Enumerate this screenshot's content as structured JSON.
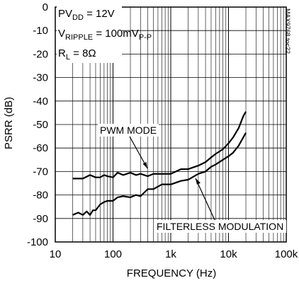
{
  "chart_data": {
    "type": "line",
    "xlabel": "FREQUENCY (Hz)",
    "ylabel": "PSRR (dB)",
    "x_scale": "log",
    "xlim": [
      10,
      100000
    ],
    "ylim": [
      -100,
      0
    ],
    "grid": true,
    "x_tick_labels": [
      "10",
      "100",
      "1k",
      "10k",
      "100k"
    ],
    "x_ticks": [
      10,
      100,
      1000,
      10000,
      100000
    ],
    "y_tick_labels": [
      "0",
      "-10",
      "-20",
      "-30",
      "-40",
      "-50",
      "-60",
      "-70",
      "-80",
      "-90",
      "-100"
    ],
    "y_ticks": [
      0,
      -10,
      -20,
      -30,
      -40,
      -50,
      -60,
      -70,
      -80,
      -90,
      -100
    ],
    "conditions": {
      "line1": {
        "main": "PV",
        "sub": "DD",
        "rest": " = 12V"
      },
      "line2": {
        "main": "V",
        "sub": "RIPPLE",
        "rest": " = 100mV",
        "sub2": "P-P"
      },
      "line3": {
        "main": "R",
        "sub": "L",
        "rest": " = 8Ω"
      }
    },
    "watermark": "MAX9768 toc22",
    "annotations": [
      "PWM MODE",
      "FILTERLESS MODULATION"
    ],
    "series": [
      {
        "name": "PWM MODE",
        "x": [
          20,
          30,
          40,
          50,
          60,
          70,
          80,
          100,
          120,
          150,
          200,
          250,
          300,
          400,
          500,
          700,
          1000,
          1500,
          2000,
          3000,
          4000,
          5000,
          6000,
          8000,
          10000,
          12000,
          15000,
          18000,
          20000
        ],
        "y": [
          -73,
          -73,
          -71.5,
          -72.5,
          -72.5,
          -71.5,
          -72,
          -72.5,
          -70.5,
          -71.5,
          -70.5,
          -71.5,
          -71,
          -72,
          -71,
          -71,
          -71,
          -69,
          -69,
          -67.5,
          -66,
          -64,
          -62.5,
          -60.5,
          -58,
          -55.5,
          -51.5,
          -46.5,
          -44.5
        ]
      },
      {
        "name": "FILTERLESS MODULATION",
        "x": [
          20,
          25,
          30,
          35,
          40,
          45,
          50,
          60,
          70,
          80,
          100,
          120,
          150,
          200,
          250,
          300,
          400,
          500,
          700,
          1000,
          1500,
          2000,
          3000,
          4000,
          5000,
          6000,
          8000,
          10000,
          12000,
          15000,
          18000,
          20000
        ],
        "y": [
          -88.5,
          -87.5,
          -88.5,
          -87,
          -88.5,
          -86.5,
          -86.5,
          -84,
          -83,
          -82.5,
          -82.5,
          -81,
          -80.5,
          -81,
          -80,
          -80.5,
          -77.5,
          -77.5,
          -75.5,
          -75.5,
          -74,
          -73.5,
          -71,
          -70,
          -68,
          -67,
          -65,
          -63.5,
          -62,
          -59,
          -55.5,
          -53.5
        ]
      }
    ]
  }
}
